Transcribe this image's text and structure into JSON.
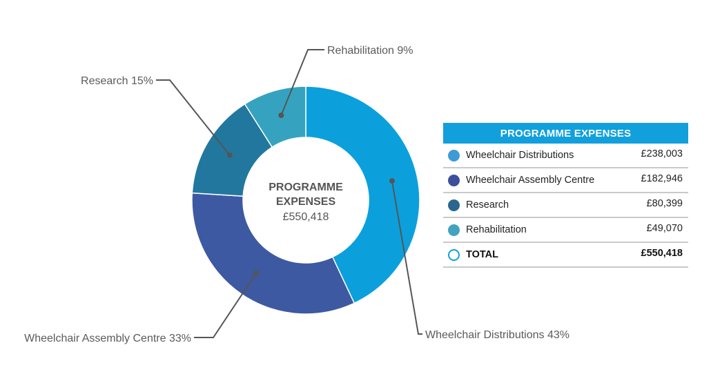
{
  "chart_data": {
    "type": "pie",
    "donut": true,
    "center": {
      "title_line1": "PROGRAMME",
      "title_line2": "EXPENSES",
      "value": "£550,418"
    },
    "slices": [
      {
        "name": "Wheelchair Distributions",
        "percent": 43,
        "callout": "Wheelchair Distributions 43%",
        "color": "#0ba0dc",
        "amount": "£238,003"
      },
      {
        "name": "Wheelchair Assembly Centre",
        "percent": 33,
        "callout": "Wheelchair Assembly Centre 33%",
        "color": "#3d59a2",
        "amount": "£182,946"
      },
      {
        "name": "Research",
        "percent": 15,
        "callout": "Research 15%",
        "color": "#22779e",
        "amount": "£80,399"
      },
      {
        "name": "Rehabilitation",
        "percent": 9,
        "callout": "Rehabilitation 9%",
        "color": "#35a3bf",
        "amount": "£49,070"
      }
    ]
  },
  "table": {
    "header": "PROGRAMME EXPENSES",
    "rows": [
      {
        "label": "Wheelchair Distributions",
        "value": "£238,003",
        "dot_color": "#3d9bd6"
      },
      {
        "label": "Wheelchair Assembly Centre",
        "value": "£182,946",
        "dot_color": "#3d4f9a"
      },
      {
        "label": "Research",
        "value": "£80,399",
        "dot_color": "#2a6690"
      },
      {
        "label": "Rehabilitation",
        "value": "£49,070",
        "dot_color": "#43a3bf"
      }
    ],
    "total": {
      "label": "TOTAL",
      "value": "£550,418",
      "dot_color": "#12a0dc"
    }
  }
}
